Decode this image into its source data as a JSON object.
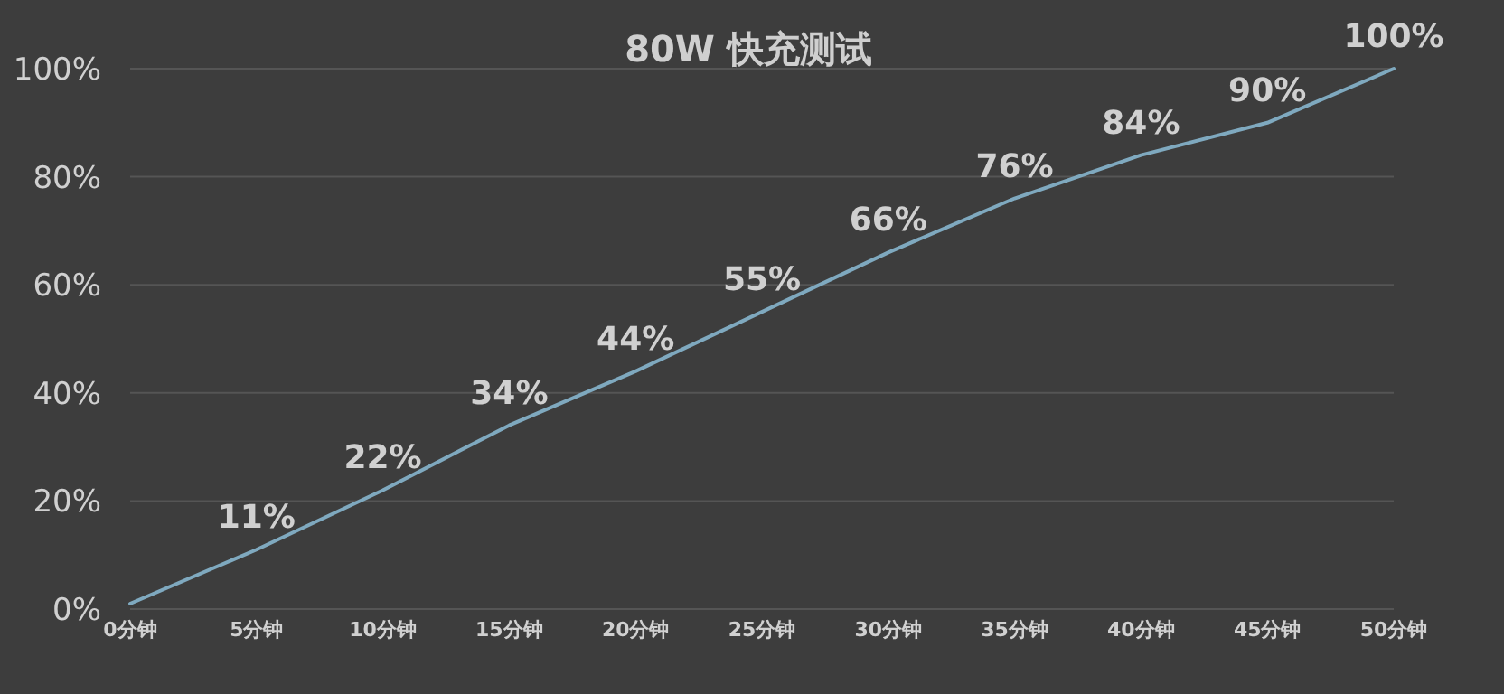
{
  "chart_data": {
    "type": "line",
    "title": "80W 快充测试",
    "categories": [
      "0分钟",
      "5分钟",
      "10分钟",
      "15分钟",
      "20分钟",
      "25分钟",
      "30分钟",
      "35分钟",
      "40分钟",
      "45分钟",
      "50分钟"
    ],
    "series": [
      {
        "color": "#7fa9bf",
        "values": [
          1,
          11,
          22,
          34,
          44,
          55,
          66,
          76,
          84,
          90,
          100
        ],
        "value_labels": [
          null,
          "11%",
          "22%",
          "34%",
          "44%",
          "55%",
          "66%",
          "76%",
          "84%",
          "90%",
          "100%"
        ]
      }
    ],
    "ylim": [
      0,
      100
    ],
    "yticks": [
      {
        "value": 0,
        "label": "0%"
      },
      {
        "value": 20,
        "label": "20%"
      },
      {
        "value": 40,
        "label": "40%"
      },
      {
        "value": 60,
        "label": "60%"
      },
      {
        "value": 80,
        "label": "80%"
      },
      {
        "value": 100,
        "label": "100%"
      }
    ],
    "grid": "y",
    "marker": "none",
    "line_style": "solid"
  }
}
